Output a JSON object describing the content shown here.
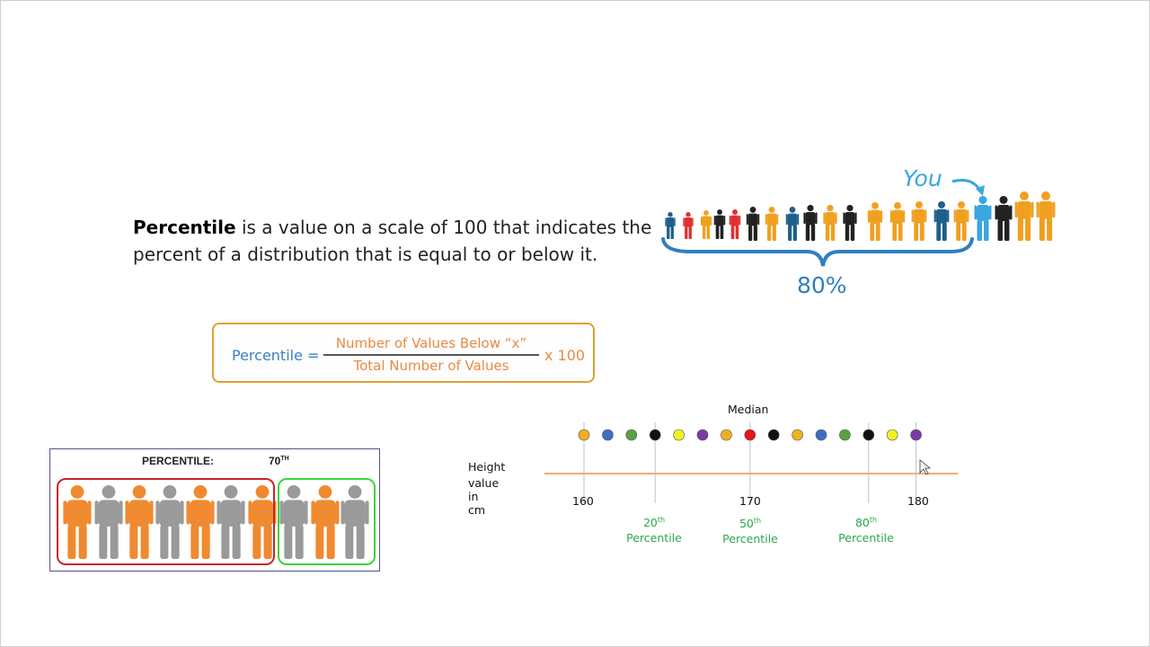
{
  "definition": {
    "term": "Percentile",
    "rest": " is a value on a scale of 100 that indicates the percent of a distribution that is equal to or below it."
  },
  "formula": {
    "label": "Percentile =",
    "numerator": "Number of Values Below “x”",
    "denominator": "Total Number of Values",
    "multiplier": "x 100"
  },
  "crowd": {
    "you_label": "You",
    "percent_label": "80%",
    "people_colors": [
      "#1f5f8b",
      "#e03030",
      "#f0a020",
      "#222222",
      "#e03030",
      "#222222",
      "#f0a020",
      "#1f5f8b",
      "#222222",
      "#f0a020",
      "#222222",
      "#f0a020",
      "#f0a020",
      "#f0a020",
      "#1f5f8b",
      "#f0a020",
      "#3aa6e0",
      "#222222",
      "#f0a020",
      "#f0a020"
    ],
    "accent_blue": "#2f7fc1"
  },
  "percentile_box": {
    "title": "PERCENTILE:",
    "value": "70",
    "value_suffix": "TH",
    "people_colors": [
      "#f08a30",
      "#9a9a9a",
      "#f08a30",
      "#9a9a9a",
      "#f08a30",
      "#9a9a9a",
      "#f08a30",
      "#9a9a9a",
      "#f08a30",
      "#9a9a9a"
    ]
  },
  "timeline": {
    "median_label": "Median",
    "axis_label_line1": "Height",
    "axis_label_line2": "value in cm",
    "dot_colors": [
      "#f0b020",
      "#3b6fc4",
      "#5aa040",
      "#111111",
      "#f0f020",
      "#7a3aa8",
      "#f0b020",
      "#e01818",
      "#111111",
      "#f0b020",
      "#3b6fc4",
      "#5aa040",
      "#111111",
      "#f0f020",
      "#7a3aa8"
    ],
    "ticks": [
      {
        "value": "160"
      },
      {
        "value": "170"
      },
      {
        "value": "180"
      }
    ],
    "percentiles": [
      {
        "num": "20",
        "sup": "th",
        "word": "Percentile"
      },
      {
        "num": "50",
        "sup": "th",
        "word": "Percentile"
      },
      {
        "num": "80",
        "sup": "th",
        "word": "Percentile"
      }
    ]
  }
}
